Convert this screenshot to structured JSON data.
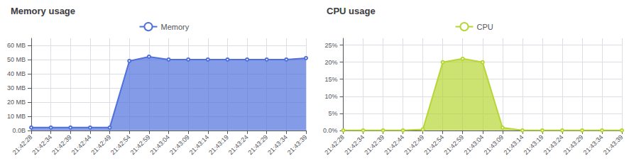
{
  "chart_data": [
    {
      "type": "area",
      "title": "Memory usage",
      "categories": [
        "21:42:28",
        "21:42:34",
        "21:42:39",
        "21:42:44",
        "21:42:49",
        "21:42:54",
        "21:42:59",
        "21:43:04",
        "21:43:09",
        "21:43:14",
        "21:43:19",
        "21:43:24",
        "21:43:29",
        "21:43:34",
        "21:43:39"
      ],
      "series": [
        {
          "name": "Memory",
          "values": [
            2,
            2,
            2,
            2,
            2,
            49,
            52,
            50,
            50,
            50,
            50,
            50,
            50,
            50,
            51
          ]
        }
      ],
      "ylim": [
        0,
        65
      ],
      "yticks": [
        {
          "value": 0,
          "label": "0.0B"
        },
        {
          "value": 10,
          "label": "10 MB"
        },
        {
          "value": 20,
          "label": "20 MB"
        },
        {
          "value": 30,
          "label": "30 MB"
        },
        {
          "value": 40,
          "label": "40 MB"
        },
        {
          "value": 50,
          "label": "50 MB"
        },
        {
          "value": 60,
          "label": "60 MB"
        }
      ],
      "grid": true,
      "legend": "top"
    },
    {
      "type": "area",
      "title": "CPU usage",
      "categories": [
        "21:42:28",
        "21:42:34",
        "21:42:39",
        "21:42:44",
        "21:42:49",
        "21:42:54",
        "21:42:59",
        "21:43:04",
        "21:43:09",
        "21:43:14",
        "21:43:19",
        "21:43:24",
        "21:43:29",
        "21:43:34",
        "21:43:39"
      ],
      "series": [
        {
          "name": "CPU",
          "values": [
            0,
            0,
            0,
            0,
            0.3,
            20,
            21,
            20,
            0.8,
            0,
            0,
            0,
            0,
            0,
            0
          ]
        }
      ],
      "ylim": [
        0,
        27
      ],
      "yticks": [
        {
          "value": 0,
          "label": "0.0%"
        },
        {
          "value": 5,
          "label": "5%"
        },
        {
          "value": 10,
          "label": "10%"
        },
        {
          "value": 15,
          "label": "15%"
        },
        {
          "value": 20,
          "label": "20%"
        },
        {
          "value": 25,
          "label": "25%"
        }
      ],
      "grid": true,
      "legend": "top"
    }
  ]
}
